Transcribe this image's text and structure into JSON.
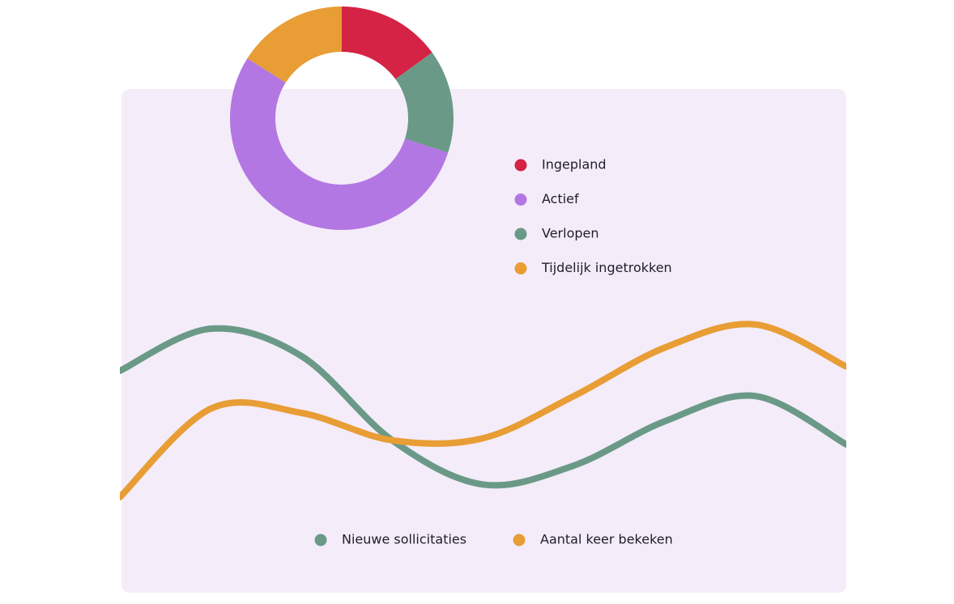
{
  "chart_data": [
    {
      "type": "pie",
      "categories": [
        "Ingepland",
        "Actief",
        "Verlopen",
        "Tijdelijk ingetrokken"
      ],
      "values": [
        15,
        54,
        15,
        16
      ],
      "order": [
        0,
        2,
        1,
        3
      ],
      "colors": [
        "#d42344",
        "#b377e3",
        "#6a9a87",
        "#e89d35"
      ]
    },
    {
      "type": "line",
      "categories": [
        null,
        null,
        null,
        null,
        null,
        null,
        null,
        null,
        null
      ],
      "ylim": [
        0,
        100
      ],
      "series": [
        {
          "name": "Nieuwe sollicitaties",
          "color": "#6a9a87",
          "values": [
            70,
            90,
            77,
            37,
            16,
            25,
            46,
            58,
            35
          ]
        },
        {
          "name": "Aantal keer bekeken",
          "color": "#e89d35",
          "values": [
            10,
            52,
            50,
            37,
            38,
            58,
            81,
            92,
            72
          ]
        }
      ]
    }
  ]
}
